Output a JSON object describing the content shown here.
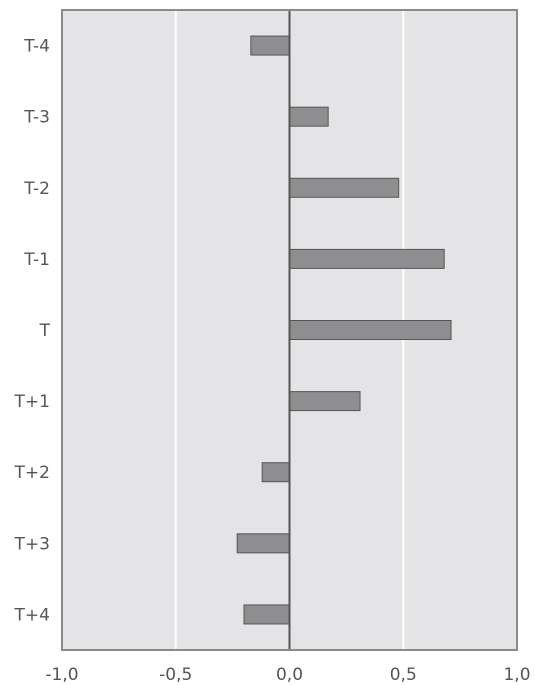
{
  "chart_data": {
    "type": "bar",
    "orientation": "horizontal",
    "title": "",
    "xlabel": "",
    "ylabel": "",
    "categories": [
      "T-4",
      "T-3",
      "T-2",
      "T-1",
      "T",
      "T+1",
      "T+2",
      "T+3",
      "T+4"
    ],
    "values": [
      -0.17,
      0.17,
      0.48,
      0.68,
      0.71,
      0.31,
      -0.12,
      -0.23,
      -0.2
    ],
    "xlim": [
      -1.0,
      1.0
    ],
    "x_ticks": [
      -1.0,
      -0.5,
      0.0,
      0.5,
      1.0
    ],
    "x_tick_labels": [
      "-1,0",
      "-0,5",
      "0,0",
      "0,5",
      "1,0"
    ],
    "grid": "vertical",
    "legend": "none",
    "colors": {
      "plot_background": "#e4e4e6",
      "bar_fill": "#8e8e90",
      "bar_stroke": "#555555",
      "grid_line": "#ffffff",
      "frame": "#8a8a8a",
      "zero_line": "#555555",
      "text": "#555555"
    }
  }
}
